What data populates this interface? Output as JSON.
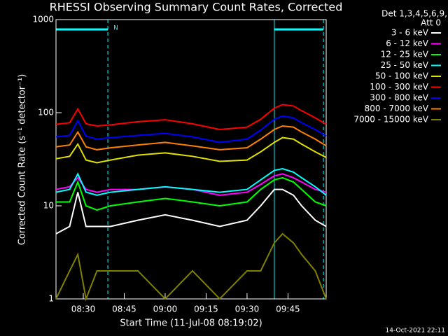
{
  "chart_data": {
    "type": "line",
    "title": "RHESSI Observing Summary Count Rates, Corrected",
    "x_label": "Start Time (11-Jul-08 08:19:02)",
    "y_label": "Corrected Count Rate (s⁻¹ detector⁻¹)",
    "legend_header": [
      "Det 1,3,4,5,6,9,",
      "Att 0"
    ],
    "footer": "14-Oct-2021 22:11",
    "log_y": true,
    "ylim": [
      1,
      1000
    ],
    "yticks": [
      1,
      10,
      100,
      1000
    ],
    "xlim": [
      "08:20",
      "09:59"
    ],
    "xticks": [
      "08:30",
      "08:45",
      "09:00",
      "09:15",
      "09:30",
      "09:45"
    ],
    "legend": "right",
    "intervals": [
      {
        "start": "08:20",
        "end": "08:39",
        "label": "N"
      },
      {
        "start": "09:40",
        "end": "09:58"
      }
    ],
    "interval_color": "#00ffff",
    "x": [
      "08:20",
      "08:25",
      "08:28",
      "08:31",
      "08:35",
      "08:40",
      "08:50",
      "09:00",
      "09:10",
      "09:20",
      "09:30",
      "09:35",
      "09:40",
      "09:43",
      "09:47",
      "09:50",
      "09:55",
      "09:59"
    ],
    "series": [
      {
        "name": "3 - 6 keV",
        "color": "#ffffff",
        "values": [
          5,
          6,
          14,
          6,
          6,
          6,
          7,
          8,
          7,
          6,
          7,
          10,
          15,
          15,
          13,
          10,
          7,
          6
        ]
      },
      {
        "name": "6 - 12 keV",
        "color": "#ff00ff",
        "values": [
          15,
          16,
          20,
          15,
          14,
          15,
          15,
          16,
          15,
          13,
          14,
          17,
          21,
          22,
          20,
          18,
          15,
          14
        ]
      },
      {
        "name": "12 - 25 keV",
        "color": "#00ff00",
        "values": [
          11,
          11,
          18,
          10,
          9,
          10,
          11,
          12,
          11,
          10,
          11,
          15,
          19,
          20,
          18,
          15,
          11,
          10
        ]
      },
      {
        "name": "25 - 50 keV",
        "color": "#00ffff",
        "values": [
          14,
          15,
          22,
          14,
          13,
          14,
          15,
          16,
          15,
          14,
          15,
          19,
          24,
          25,
          23,
          20,
          16,
          13
        ]
      },
      {
        "name": "50 - 100 keV",
        "color": "#e0e000",
        "values": [
          32,
          34,
          46,
          31,
          29,
          31,
          35,
          37,
          34,
          30,
          31,
          38,
          48,
          54,
          52,
          46,
          38,
          33
        ]
      },
      {
        "name": "100 - 300 keV",
        "color": "#ff0000",
        "values": [
          75,
          78,
          110,
          76,
          72,
          74,
          80,
          84,
          76,
          66,
          70,
          85,
          112,
          122,
          118,
          105,
          88,
          75
        ]
      },
      {
        "name": "300 - 800 keV",
        "color": "#0000ff",
        "values": [
          55,
          57,
          82,
          56,
          52,
          54,
          57,
          60,
          55,
          48,
          52,
          65,
          85,
          92,
          88,
          78,
          66,
          56
        ]
      },
      {
        "name": "800 - 7000 keV",
        "color": "#ff8000",
        "values": [
          43,
          45,
          62,
          43,
          40,
          42,
          45,
          48,
          44,
          40,
          42,
          52,
          66,
          72,
          70,
          62,
          52,
          44
        ]
      },
      {
        "name": "7000 - 15000 keV",
        "color": "#808000",
        "values": [
          1,
          2,
          3,
          1,
          2,
          2,
          2,
          1,
          2,
          1,
          2,
          2,
          4,
          5,
          4,
          3,
          2,
          1
        ]
      }
    ]
  }
}
